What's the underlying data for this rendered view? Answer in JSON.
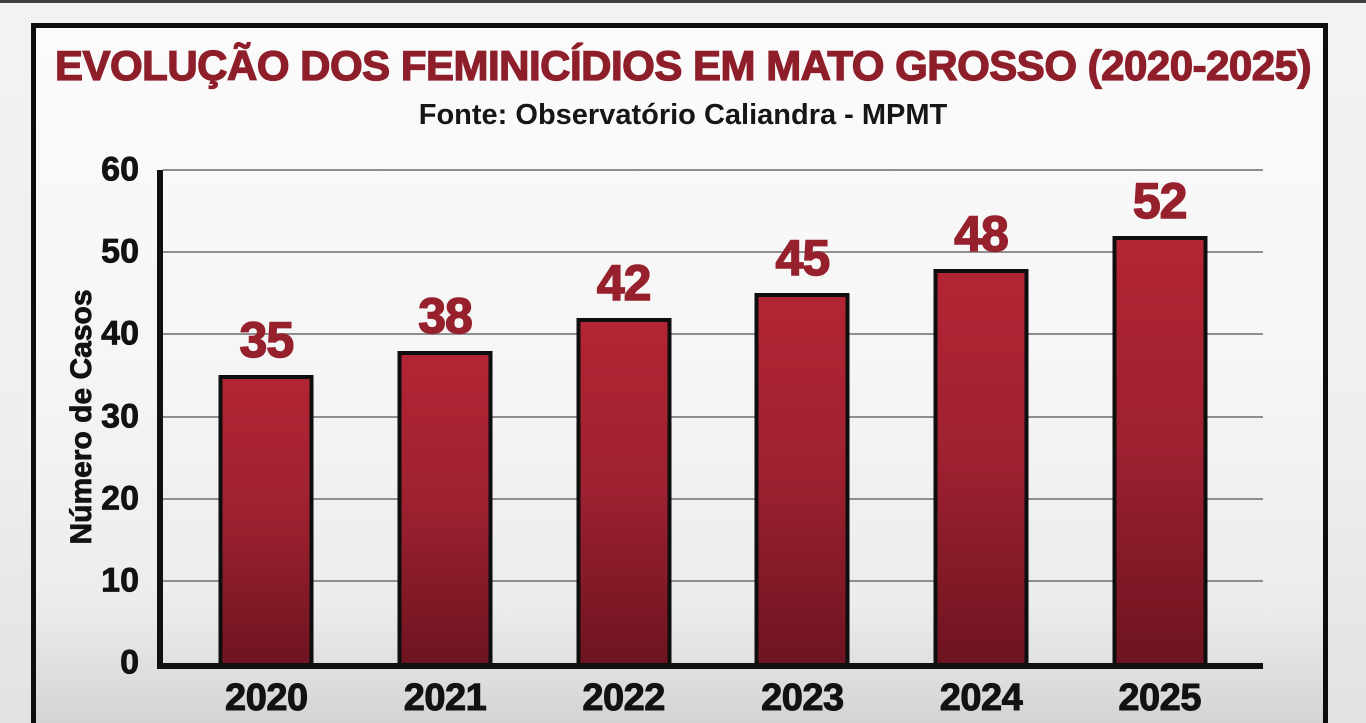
{
  "page": {
    "title": "EVOLUÇÃO DOS FEMINICÍDIOS EM MATO GROSSO (2020-2025)",
    "subtitle": "Fonte: Observatório Caliandra - MPMT"
  },
  "chart_data": {
    "type": "bar",
    "title": "EVOLUÇÃO DOS FEMINICÍDIOS EM MATO GROSSO (2020-2025)",
    "source": "Fonte: Observatório Caliandra - MPMT",
    "categories": [
      "2020",
      "2021",
      "2022",
      "2023",
      "2024",
      "2025"
    ],
    "values": [
      35,
      38,
      42,
      45,
      48,
      52
    ],
    "xlabel": "",
    "ylabel": "Número de Casos",
    "ylim": [
      0,
      60
    ],
    "yticks": [
      0,
      10,
      20,
      30,
      40,
      50,
      60
    ],
    "grid": true,
    "legend": false,
    "colors": {
      "title": "#8e1f2a",
      "value_label": "#97202d",
      "bar_top": "#b22534",
      "bar_mid": "#9e2130",
      "bar_bottom": "#6e1420",
      "bar_border": "#0e0e0e",
      "gridline": "#8f8f8f",
      "axis": "#101010"
    }
  }
}
